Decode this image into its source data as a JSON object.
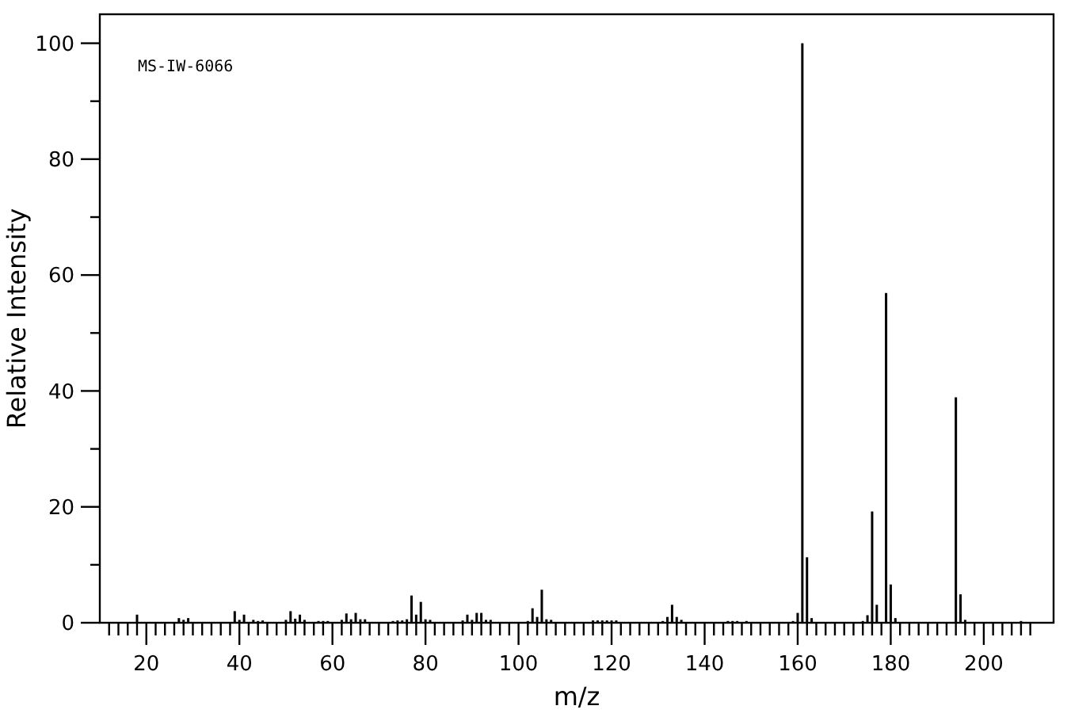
{
  "chart_data": {
    "type": "bar",
    "xlabel": "m/z",
    "ylabel": "Relative Intensity",
    "annotations": [
      "MS-IW-6066"
    ],
    "x": [
      18,
      27,
      28,
      29,
      39,
      40,
      41,
      43,
      44,
      45,
      50,
      51,
      52,
      53,
      54,
      57,
      58,
      59,
      62,
      63,
      64,
      65,
      66,
      67,
      73,
      74,
      75,
      76,
      77,
      78,
      79,
      80,
      81,
      88,
      89,
      90,
      91,
      92,
      93,
      94,
      102,
      103,
      104,
      105,
      106,
      107,
      116,
      117,
      118,
      119,
      120,
      121,
      131,
      132,
      133,
      134,
      135,
      145,
      146,
      147,
      149,
      159,
      160,
      161,
      162,
      163,
      174,
      175,
      176,
      177,
      179,
      180,
      181,
      194,
      195,
      196,
      208
    ],
    "values": [
      1.4,
      0.8,
      0.5,
      0.8,
      2,
      0.5,
      1.4,
      0.5,
      0.3,
      0.4,
      0.5,
      2,
      0.7,
      1.4,
      0.5,
      0.3,
      0.3,
      0.3,
      0.5,
      1.6,
      0.6,
      1.7,
      0.6,
      0.6,
      0.3,
      0.4,
      0.4,
      0.6,
      4.7,
      1.4,
      3.6,
      0.6,
      0.5,
      0.4,
      1.4,
      0.5,
      1.7,
      1.7,
      0.5,
      0.5,
      0.3,
      2.5,
      1,
      5.7,
      0.6,
      0.5,
      0.4,
      0.4,
      0.4,
      0.4,
      0.4,
      0.4,
      0.3,
      1,
      3.1,
      1,
      0.5,
      0.3,
      0.3,
      0.3,
      0.3,
      0.3,
      1.7,
      100,
      11.3,
      0.8,
      0.3,
      1.3,
      19.2,
      3.1,
      56.9,
      6.6,
      0.8,
      38.9,
      4.9,
      0.5,
      0.3
    ],
    "color": "#000000",
    "xlim": [
      10,
      215
    ],
    "ylim": [
      0,
      105
    ],
    "xticks": [
      {
        "value": 12,
        "label": null
      },
      {
        "value": 14,
        "label": null
      },
      {
        "value": 16,
        "label": null
      },
      {
        "value": 18,
        "label": null
      },
      20,
      {
        "value": 22,
        "label": null
      },
      {
        "value": 24,
        "label": null
      },
      {
        "value": 26,
        "label": null
      },
      {
        "value": 28,
        "label": null
      },
      {
        "value": 30,
        "label": null
      },
      {
        "value": 32,
        "label": null
      },
      {
        "value": 34,
        "label": null
      },
      {
        "value": 36,
        "label": null
      },
      {
        "value": 38,
        "label": null
      },
      40,
      {
        "value": 42,
        "label": null
      },
      {
        "value": 44,
        "label": null
      },
      {
        "value": 46,
        "label": null
      },
      {
        "value": 48,
        "label": null
      },
      {
        "value": 50,
        "label": null
      },
      {
        "value": 52,
        "label": null
      },
      {
        "value": 54,
        "label": null
      },
      {
        "value": 56,
        "label": null
      },
      {
        "value": 58,
        "label": null
      },
      60,
      {
        "value": 62,
        "label": null
      },
      {
        "value": 64,
        "label": null
      },
      {
        "value": 66,
        "label": null
      },
      {
        "value": 68,
        "label": null
      },
      {
        "value": 70,
        "label": null
      },
      {
        "value": 72,
        "label": null
      },
      {
        "value": 74,
        "label": null
      },
      {
        "value": 76,
        "label": null
      },
      {
        "value": 78,
        "label": null
      },
      80,
      {
        "value": 82,
        "label": null
      },
      {
        "value": 84,
        "label": null
      },
      {
        "value": 86,
        "label": null
      },
      {
        "value": 88,
        "label": null
      },
      {
        "value": 90,
        "label": null
      },
      {
        "value": 92,
        "label": null
      },
      {
        "value": 94,
        "label": null
      },
      {
        "value": 96,
        "label": null
      },
      {
        "value": 98,
        "label": null
      },
      100,
      {
        "value": 102,
        "label": null
      },
      {
        "value": 104,
        "label": null
      },
      {
        "value": 106,
        "label": null
      },
      {
        "value": 108,
        "label": null
      },
      {
        "value": 110,
        "label": null
      },
      {
        "value": 112,
        "label": null
      },
      {
        "value": 114,
        "label": null
      },
      {
        "value": 116,
        "label": null
      },
      {
        "value": 118,
        "label": null
      },
      120,
      {
        "value": 122,
        "label": null
      },
      {
        "value": 124,
        "label": null
      },
      {
        "value": 126,
        "label": null
      },
      {
        "value": 128,
        "label": null
      },
      {
        "value": 130,
        "label": null
      },
      {
        "value": 132,
        "label": null
      },
      {
        "value": 134,
        "label": null
      },
      {
        "value": 136,
        "label": null
      },
      {
        "value": 138,
        "label": null
      },
      140,
      {
        "value": 142,
        "label": null
      },
      {
        "value": 144,
        "label": null
      },
      {
        "value": 146,
        "label": null
      },
      {
        "value": 148,
        "label": null
      },
      {
        "value": 150,
        "label": null
      },
      {
        "value": 152,
        "label": null
      },
      {
        "value": 154,
        "label": null
      },
      {
        "value": 156,
        "label": null
      },
      {
        "value": 158,
        "label": null
      },
      160,
      {
        "value": 162,
        "label": null
      },
      {
        "value": 164,
        "label": null
      },
      {
        "value": 166,
        "label": null
      },
      {
        "value": 168,
        "label": null
      },
      {
        "value": 170,
        "label": null
      },
      {
        "value": 172,
        "label": null
      },
      {
        "value": 174,
        "label": null
      },
      {
        "value": 176,
        "label": null
      },
      {
        "value": 178,
        "label": null
      },
      180,
      {
        "value": 182,
        "label": null
      },
      {
        "value": 184,
        "label": null
      },
      {
        "value": 186,
        "label": null
      },
      {
        "value": 188,
        "label": null
      },
      {
        "value": 190,
        "label": null
      },
      {
        "value": 192,
        "label": null
      },
      {
        "value": 194,
        "label": null
      },
      {
        "value": 196,
        "label": null
      },
      {
        "value": 198,
        "label": null
      },
      200,
      {
        "value": 202,
        "label": null
      },
      {
        "value": 204,
        "label": null
      },
      {
        "value": 206,
        "label": null
      },
      {
        "value": 208,
        "label": null
      },
      {
        "value": 210,
        "label": null
      }
    ],
    "yticks": [
      0,
      {
        "value": 10,
        "label": null
      },
      20,
      {
        "value": 30,
        "label": null
      },
      40,
      {
        "value": 50,
        "label": null
      },
      60,
      {
        "value": 70,
        "label": null
      },
      80,
      {
        "value": 90,
        "label": null
      },
      100
    ]
  }
}
